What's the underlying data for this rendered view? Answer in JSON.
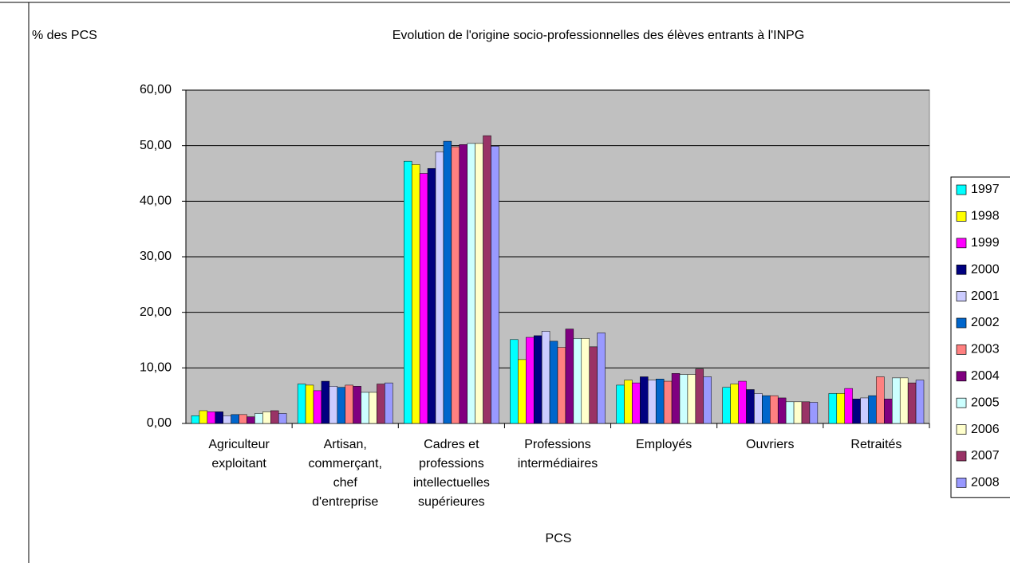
{
  "chart_data": {
    "type": "bar",
    "title": "Evolution de l'origine socio-professionnelles des élèves entrants à l'INPG",
    "y_label": "% des PCS",
    "x_label": "PCS",
    "categories": [
      [
        "Agriculteur",
        "exploitant"
      ],
      [
        "Artisan,",
        "commerçant,",
        "chef",
        "d'entreprise"
      ],
      [
        "Cadres et",
        "professions",
        "intellectuelles",
        "supérieures"
      ],
      [
        "Professions",
        "intermédiaires"
      ],
      [
        "Employés"
      ],
      [
        "Ouvriers"
      ],
      [
        "Retraités"
      ]
    ],
    "series": [
      {
        "name": "1997",
        "color": "#00ffff",
        "values": [
          1.4,
          7.1,
          47.2,
          15.1,
          6.9,
          6.5,
          5.4
        ]
      },
      {
        "name": "1998",
        "color": "#ffff00",
        "values": [
          2.3,
          6.9,
          46.6,
          11.5,
          7.8,
          7.1,
          5.4
        ]
      },
      {
        "name": "1999",
        "color": "#ff00ff",
        "values": [
          2.1,
          5.9,
          45.0,
          15.5,
          7.3,
          7.6,
          6.3
        ]
      },
      {
        "name": "2000",
        "color": "#000080",
        "values": [
          2.1,
          7.6,
          45.9,
          15.8,
          8.4,
          6.1,
          4.4
        ]
      },
      {
        "name": "2001",
        "color": "#ccccff",
        "values": [
          1.4,
          6.7,
          48.9,
          16.6,
          7.8,
          5.4,
          4.6
        ]
      },
      {
        "name": "2002",
        "color": "#0066cc",
        "values": [
          1.6,
          6.5,
          50.8,
          14.8,
          8.0,
          5.0,
          5.0
        ]
      },
      {
        "name": "2003",
        "color": "#ff8080",
        "values": [
          1.6,
          6.9,
          49.8,
          13.7,
          7.6,
          5.0,
          8.4
        ]
      },
      {
        "name": "2004",
        "color": "#800080",
        "values": [
          1.2,
          6.7,
          50.2,
          17.0,
          9.0,
          4.6,
          4.4
        ]
      },
      {
        "name": "2005",
        "color": "#ccffff",
        "values": [
          1.8,
          5.6,
          50.4,
          15.3,
          8.8,
          3.9,
          8.2
        ]
      },
      {
        "name": "2006",
        "color": "#ffffcc",
        "values": [
          2.1,
          5.6,
          50.4,
          15.3,
          8.8,
          3.9,
          8.2
        ]
      },
      {
        "name": "2007",
        "color": "#993366",
        "values": [
          2.3,
          7.1,
          51.8,
          13.8,
          9.8,
          3.9,
          7.3
        ]
      },
      {
        "name": "2008",
        "color": "#9999ff",
        "values": [
          1.8,
          7.3,
          49.9,
          16.3,
          8.4,
          3.8,
          7.8
        ]
      }
    ],
    "ylim": [
      0,
      60
    ],
    "yticks": [
      {
        "value": 0,
        "label": "0,00"
      },
      {
        "value": 10,
        "label": "10,00"
      },
      {
        "value": 20,
        "label": "20,00"
      },
      {
        "value": 30,
        "label": "30,00"
      },
      {
        "value": 40,
        "label": "40,00"
      },
      {
        "value": 50,
        "label": "50,00"
      },
      {
        "value": 60,
        "label": "60,00"
      }
    ],
    "grid": true,
    "plot_background": "#c0c0c0",
    "legend": "right"
  }
}
